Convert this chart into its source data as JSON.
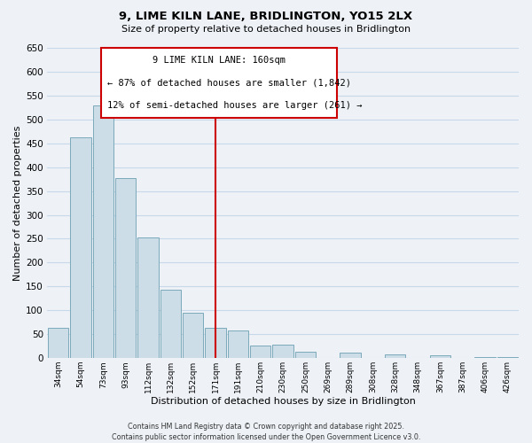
{
  "title": "9, LIME KILN LANE, BRIDLINGTON, YO15 2LX",
  "subtitle": "Size of property relative to detached houses in Bridlington",
  "xlabel": "Distribution of detached houses by size in Bridlington",
  "ylabel": "Number of detached properties",
  "bar_labels": [
    "34sqm",
    "54sqm",
    "73sqm",
    "93sqm",
    "112sqm",
    "132sqm",
    "152sqm",
    "171sqm",
    "191sqm",
    "210sqm",
    "230sqm",
    "250sqm",
    "269sqm",
    "289sqm",
    "308sqm",
    "328sqm",
    "348sqm",
    "367sqm",
    "387sqm",
    "406sqm",
    "426sqm"
  ],
  "bar_values": [
    63,
    462,
    530,
    377,
    252,
    143,
    95,
    63,
    57,
    27,
    28,
    14,
    0,
    11,
    0,
    8,
    0,
    5,
    0,
    3,
    2
  ],
  "bar_color": "#ccdde8",
  "bar_edge_color": "#7aaabb",
  "ylim": [
    0,
    650
  ],
  "yticks": [
    0,
    50,
    100,
    150,
    200,
    250,
    300,
    350,
    400,
    450,
    500,
    550,
    600,
    650
  ],
  "vline_x": 7.0,
  "vline_color": "#cc0000",
  "annotation_title": "9 LIME KILN LANE: 160sqm",
  "annotation_line1": "← 87% of detached houses are smaller (1,842)",
  "annotation_line2": "12% of semi-detached houses are larger (261) →",
  "annotation_box_color": "#cc0000",
  "footer_line1": "Contains HM Land Registry data © Crown copyright and database right 2025.",
  "footer_line2": "Contains public sector information licensed under the Open Government Licence v3.0.",
  "grid_color": "#c8d8e8",
  "background_color": "#eef2f7"
}
